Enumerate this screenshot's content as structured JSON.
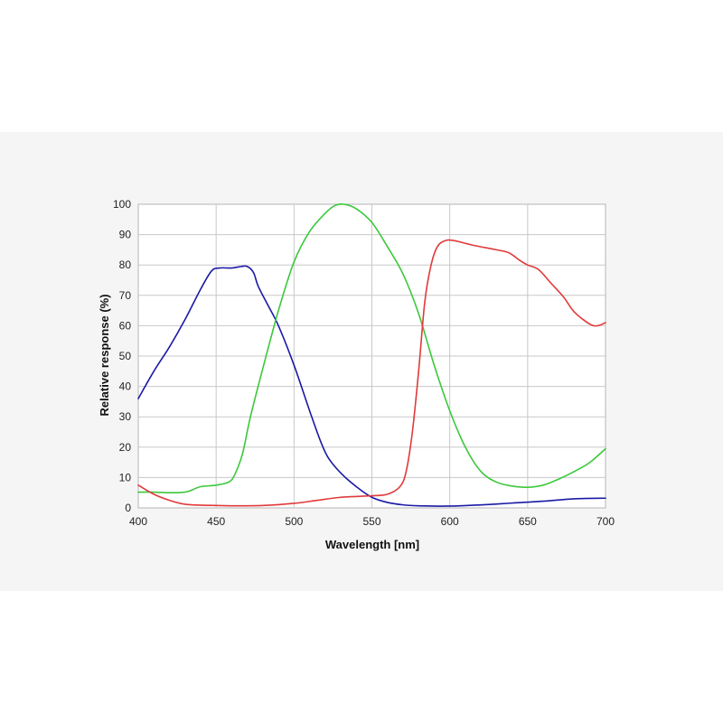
{
  "chart_data": {
    "type": "line",
    "title": "",
    "xlabel": "Wavelength [nm]",
    "ylabel": "Relative response (%)",
    "xlim": [
      400,
      700
    ],
    "ylim": [
      0,
      100
    ],
    "xticks": [
      400,
      450,
      500,
      550,
      600,
      650,
      700
    ],
    "yticks": [
      0,
      10,
      20,
      30,
      40,
      50,
      60,
      70,
      80,
      90,
      100
    ],
    "grid": true,
    "legend": "none",
    "series": [
      {
        "color": "#1a1aa6",
        "points": [
          [
            400,
            36
          ],
          [
            410,
            45
          ],
          [
            420,
            53
          ],
          [
            430,
            62
          ],
          [
            440,
            72
          ],
          [
            447,
            78
          ],
          [
            452,
            79
          ],
          [
            460,
            79
          ],
          [
            466,
            79.5
          ],
          [
            470,
            79.5
          ],
          [
            474,
            77.5
          ],
          [
            477,
            73
          ],
          [
            483,
            67
          ],
          [
            490,
            60
          ],
          [
            500,
            47
          ],
          [
            510,
            32
          ],
          [
            517,
            22
          ],
          [
            522,
            16.5
          ],
          [
            530,
            11.5
          ],
          [
            540,
            7
          ],
          [
            550,
            3.5
          ],
          [
            560,
            1.8
          ],
          [
            570,
            1
          ],
          [
            580,
            0.7
          ],
          [
            600,
            0.6
          ],
          [
            620,
            1
          ],
          [
            640,
            1.6
          ],
          [
            660,
            2.2
          ],
          [
            680,
            3
          ],
          [
            700,
            3.2
          ]
        ]
      },
      {
        "color": "#3cc83c",
        "points": [
          [
            400,
            5.2
          ],
          [
            410,
            5.2
          ],
          [
            420,
            5
          ],
          [
            430,
            5.2
          ],
          [
            435,
            6
          ],
          [
            440,
            7
          ],
          [
            450,
            7.5
          ],
          [
            458,
            8.5
          ],
          [
            462,
            11
          ],
          [
            467,
            18
          ],
          [
            472,
            30
          ],
          [
            480,
            46
          ],
          [
            490,
            65
          ],
          [
            500,
            81
          ],
          [
            510,
            91
          ],
          [
            520,
            97
          ],
          [
            526,
            99.5
          ],
          [
            532,
            100
          ],
          [
            540,
            98.5
          ],
          [
            550,
            94
          ],
          [
            560,
            86
          ],
          [
            570,
            77
          ],
          [
            580,
            64
          ],
          [
            590,
            47
          ],
          [
            600,
            32
          ],
          [
            610,
            20
          ],
          [
            620,
            12
          ],
          [
            630,
            8.5
          ],
          [
            640,
            7.2
          ],
          [
            650,
            6.8
          ],
          [
            660,
            7.5
          ],
          [
            670,
            9.5
          ],
          [
            680,
            12
          ],
          [
            690,
            15
          ],
          [
            700,
            19.5
          ]
        ]
      },
      {
        "color": "#e03a3a",
        "points": [
          [
            400,
            7.5
          ],
          [
            410,
            4.5
          ],
          [
            420,
            2.5
          ],
          [
            430,
            1.2
          ],
          [
            440,
            0.9
          ],
          [
            450,
            0.8
          ],
          [
            460,
            0.7
          ],
          [
            480,
            0.8
          ],
          [
            500,
            1.5
          ],
          [
            515,
            2.5
          ],
          [
            530,
            3.5
          ],
          [
            550,
            4
          ],
          [
            560,
            4.5
          ],
          [
            568,
            7
          ],
          [
            572,
            12
          ],
          [
            576,
            25
          ],
          [
            580,
            45
          ],
          [
            584,
            68
          ],
          [
            588,
            80
          ],
          [
            592,
            86
          ],
          [
            597,
            88
          ],
          [
            603,
            88
          ],
          [
            615,
            86.5
          ],
          [
            630,
            85
          ],
          [
            638,
            84
          ],
          [
            645,
            81.5
          ],
          [
            650,
            80
          ],
          [
            657,
            78.5
          ],
          [
            665,
            74
          ],
          [
            673,
            69.5
          ],
          [
            680,
            64.5
          ],
          [
            690,
            60.5
          ],
          [
            695,
            60
          ],
          [
            700,
            61
          ]
        ]
      }
    ]
  }
}
